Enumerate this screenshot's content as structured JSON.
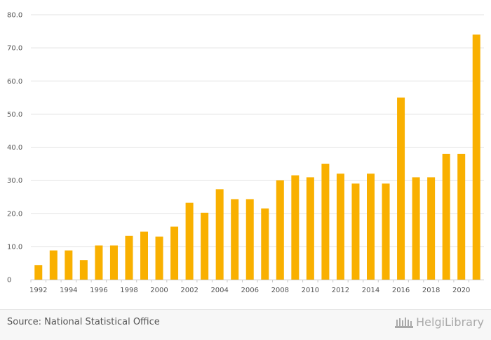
{
  "chart_data": {
    "type": "bar",
    "categories": [
      "1992",
      "1993",
      "1994",
      "1995",
      "1996",
      "1997",
      "1998",
      "1999",
      "2000",
      "2001",
      "2002",
      "2003",
      "2004",
      "2005",
      "2006",
      "2007",
      "2008",
      "2009",
      "2010",
      "2011",
      "2012",
      "2013",
      "2014",
      "2015",
      "2016",
      "2017",
      "2018",
      "2019",
      "2020",
      "2021"
    ],
    "values": [
      4.4,
      8.8,
      8.8,
      5.9,
      10.3,
      10.3,
      13.2,
      14.5,
      13.0,
      16.0,
      23.2,
      20.2,
      27.3,
      24.3,
      24.3,
      21.5,
      30.0,
      31.5,
      30.9,
      35.0,
      32.0,
      29.0,
      32.0,
      29.0,
      55.0,
      30.9,
      30.9,
      38.0,
      38.0,
      74.0
    ],
    "x_tick_labels": [
      "1992",
      "1994",
      "1996",
      "1998",
      "2000",
      "2002",
      "2004",
      "2006",
      "2008",
      "2010",
      "2012",
      "2014",
      "2016",
      "2018",
      "2020"
    ],
    "y_tick_labels": [
      "0",
      "10.0",
      "20.0",
      "30.0",
      "40.0",
      "50.0",
      "60.0",
      "70.0",
      "80.0"
    ],
    "y_ticks": [
      0,
      10,
      20,
      30,
      40,
      50,
      60,
      70,
      80
    ],
    "ylim": [
      0,
      80
    ],
    "title": "",
    "xlabel": "",
    "ylabel": "",
    "grid": true,
    "bar_color": "#f9b000"
  },
  "footer": {
    "source": "Source: National Statistical Office",
    "logo_text": "HelgiLibrary"
  }
}
